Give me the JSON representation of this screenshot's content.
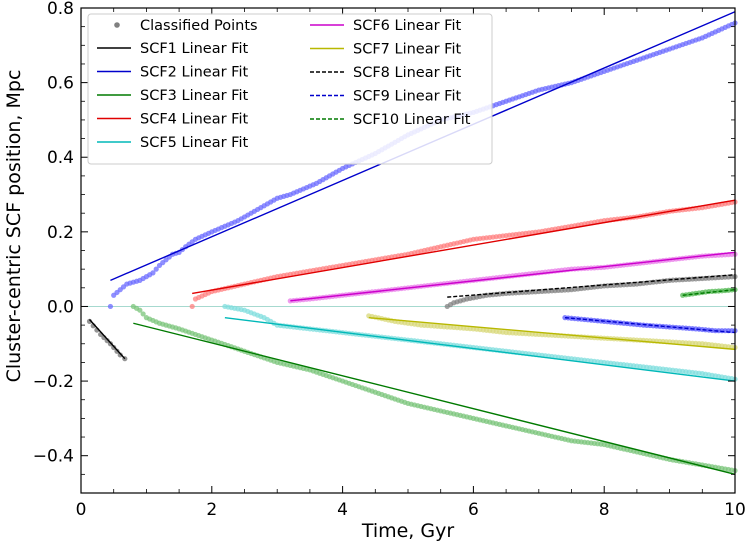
{
  "chart_data": {
    "type": "scatter",
    "title": "",
    "xlabel": "Time, Gyr",
    "ylabel": "Cluster-centric SCF position, Mpc",
    "xlim": [
      0,
      10
    ],
    "ylim": [
      -0.5,
      0.8
    ],
    "xticks": [
      0,
      2,
      4,
      6,
      8,
      10
    ],
    "xtick_labels": [
      "0",
      "2",
      "4",
      "6",
      "8",
      "10"
    ],
    "yticks": [
      -0.4,
      -0.2,
      0.0,
      0.2,
      0.4,
      0.6,
      0.8
    ],
    "ytick_labels": [
      "−0.4",
      "−0.2",
      "0.0",
      "0.2",
      "0.4",
      "0.6",
      "0.8"
    ],
    "zero_line": {
      "y": 0,
      "color": "#a6d9cf"
    },
    "legend": {
      "placement": "top-left",
      "points_label": "Classified Points",
      "points_color": "#808080",
      "entries": [
        {
          "label": "SCF1 Linear Fit",
          "color": "#000000",
          "dashed": false
        },
        {
          "label": "SCF2 Linear Fit",
          "color": "#0000cc",
          "dashed": false
        },
        {
          "label": "SCF3 Linear Fit",
          "color": "#007a00",
          "dashed": false
        },
        {
          "label": "SCF4 Linear Fit",
          "color": "#e00000",
          "dashed": false
        },
        {
          "label": "SCF5 Linear Fit",
          "color": "#00b8b8",
          "dashed": false
        },
        {
          "label": "SCF6 Linear Fit",
          "color": "#cc00cc",
          "dashed": false
        },
        {
          "label": "SCF7 Linear Fit",
          "color": "#b8b800",
          "dashed": false
        },
        {
          "label": "SCF8 Linear Fit",
          "color": "#000000",
          "dashed": true
        },
        {
          "label": "SCF9 Linear Fit",
          "color": "#0000cc",
          "dashed": true
        },
        {
          "label": "SCF10 Linear Fit",
          "color": "#007a00",
          "dashed": true
        }
      ]
    },
    "series": [
      {
        "name": "SCF1",
        "point_color": "#707070",
        "points": [
          [
            0.13,
            -0.04
          ],
          [
            0.3,
            -0.075
          ],
          [
            0.45,
            -0.1
          ],
          [
            0.6,
            -0.13
          ],
          [
            0.67,
            -0.14
          ]
        ],
        "fit": [
          [
            0.13,
            -0.035
          ],
          [
            0.67,
            -0.14
          ]
        ]
      },
      {
        "name": "SCF2",
        "point_color": "#6a6aff",
        "points": [
          [
            0.45,
            0.0
          ],
          [
            0.5,
            0.03
          ],
          [
            0.7,
            0.06
          ],
          [
            0.9,
            0.07
          ],
          [
            1.1,
            0.09
          ],
          [
            1.2,
            0.11
          ],
          [
            1.4,
            0.14
          ],
          [
            1.5,
            0.145
          ],
          [
            1.6,
            0.16
          ],
          [
            1.75,
            0.18
          ],
          [
            2.0,
            0.2
          ],
          [
            2.4,
            0.23
          ],
          [
            2.7,
            0.26
          ],
          [
            2.9,
            0.28
          ],
          [
            3.0,
            0.29
          ],
          [
            3.2,
            0.3
          ],
          [
            3.6,
            0.33
          ],
          [
            4.0,
            0.37
          ],
          [
            4.5,
            0.41
          ],
          [
            5.0,
            0.46
          ],
          [
            5.5,
            0.5
          ],
          [
            6.0,
            0.52
          ],
          [
            6.5,
            0.55
          ],
          [
            7.0,
            0.58
          ],
          [
            7.5,
            0.6
          ],
          [
            8.0,
            0.63
          ],
          [
            8.5,
            0.66
          ],
          [
            9.0,
            0.69
          ],
          [
            9.5,
            0.72
          ],
          [
            10.0,
            0.76
          ]
        ],
        "fit": [
          [
            0.45,
            0.07
          ],
          [
            10.0,
            0.79
          ]
        ]
      },
      {
        "name": "SCF3",
        "point_color": "#7ac47a",
        "points": [
          [
            0.8,
            0.0
          ],
          [
            0.9,
            -0.01
          ],
          [
            1.0,
            -0.03
          ],
          [
            1.2,
            -0.045
          ],
          [
            1.5,
            -0.06
          ],
          [
            2.0,
            -0.09
          ],
          [
            2.5,
            -0.12
          ],
          [
            3.0,
            -0.15
          ],
          [
            3.5,
            -0.17
          ],
          [
            4.0,
            -0.2
          ],
          [
            4.5,
            -0.23
          ],
          [
            5.0,
            -0.26
          ],
          [
            5.5,
            -0.28
          ],
          [
            6.0,
            -0.3
          ],
          [
            6.5,
            -0.32
          ],
          [
            7.0,
            -0.34
          ],
          [
            7.5,
            -0.36
          ],
          [
            8.0,
            -0.37
          ],
          [
            8.5,
            -0.39
          ],
          [
            9.0,
            -0.41
          ],
          [
            9.5,
            -0.425
          ],
          [
            10.0,
            -0.44
          ]
        ],
        "fit": [
          [
            0.8,
            -0.045
          ],
          [
            10.0,
            -0.45
          ]
        ]
      },
      {
        "name": "SCF4",
        "point_color": "#ff7f7f",
        "points": [
          [
            1.7,
            0.0
          ],
          [
            1.75,
            0.02
          ],
          [
            2.0,
            0.04
          ],
          [
            2.5,
            0.06
          ],
          [
            3.0,
            0.08
          ],
          [
            3.5,
            0.095
          ],
          [
            4.0,
            0.11
          ],
          [
            4.5,
            0.125
          ],
          [
            5.0,
            0.14
          ],
          [
            5.5,
            0.16
          ],
          [
            6.0,
            0.18
          ],
          [
            6.5,
            0.19
          ],
          [
            7.0,
            0.2
          ],
          [
            7.5,
            0.215
          ],
          [
            8.0,
            0.23
          ],
          [
            8.5,
            0.24
          ],
          [
            9.0,
            0.255
          ],
          [
            9.5,
            0.265
          ],
          [
            10.0,
            0.28
          ]
        ],
        "fit": [
          [
            1.7,
            0.035
          ],
          [
            10.0,
            0.285
          ]
        ]
      },
      {
        "name": "SCF5",
        "point_color": "#7fdede",
        "points": [
          [
            2.2,
            0.0
          ],
          [
            2.5,
            -0.01
          ],
          [
            2.8,
            -0.03
          ],
          [
            3.0,
            -0.05
          ],
          [
            3.5,
            -0.06
          ],
          [
            4.0,
            -0.07
          ],
          [
            4.5,
            -0.08
          ],
          [
            5.0,
            -0.09
          ],
          [
            5.5,
            -0.1
          ],
          [
            6.0,
            -0.11
          ],
          [
            6.5,
            -0.12
          ],
          [
            7.0,
            -0.13
          ],
          [
            7.5,
            -0.14
          ],
          [
            8.0,
            -0.15
          ],
          [
            8.5,
            -0.16
          ],
          [
            9.0,
            -0.17
          ],
          [
            9.5,
            -0.18
          ],
          [
            10.0,
            -0.195
          ]
        ],
        "fit": [
          [
            2.2,
            -0.03
          ],
          [
            10.0,
            -0.2
          ]
        ]
      },
      {
        "name": "SCF6",
        "point_color": "#e87ae8",
        "points": [
          [
            3.2,
            0.015
          ],
          [
            3.5,
            0.02
          ],
          [
            4.0,
            0.03
          ],
          [
            4.5,
            0.04
          ],
          [
            5.0,
            0.05
          ],
          [
            5.5,
            0.06
          ],
          [
            6.0,
            0.07
          ],
          [
            6.5,
            0.08
          ],
          [
            7.0,
            0.09
          ],
          [
            7.5,
            0.1
          ],
          [
            8.0,
            0.105
          ],
          [
            8.5,
            0.115
          ],
          [
            9.0,
            0.125
          ],
          [
            9.5,
            0.135
          ],
          [
            10.0,
            0.14
          ]
        ],
        "fit": [
          [
            3.2,
            0.015
          ],
          [
            10.0,
            0.145
          ]
        ]
      },
      {
        "name": "SCF7",
        "point_color": "#d8d87a",
        "points": [
          [
            4.4,
            -0.025
          ],
          [
            4.8,
            -0.04
          ],
          [
            5.2,
            -0.05
          ],
          [
            5.6,
            -0.055
          ],
          [
            6.0,
            -0.06
          ],
          [
            6.5,
            -0.07
          ],
          [
            7.0,
            -0.075
          ],
          [
            7.5,
            -0.08
          ],
          [
            8.0,
            -0.085
          ],
          [
            8.5,
            -0.09
          ],
          [
            9.0,
            -0.095
          ],
          [
            9.5,
            -0.1
          ],
          [
            10.0,
            -0.11
          ]
        ],
        "fit": [
          [
            4.4,
            -0.03
          ],
          [
            10.0,
            -0.115
          ]
        ]
      },
      {
        "name": "SCF8",
        "point_color": "#808080",
        "points": [
          [
            5.6,
            0.0
          ],
          [
            5.7,
            0.01
          ],
          [
            5.9,
            0.02
          ],
          [
            6.2,
            0.03
          ],
          [
            6.5,
            0.035
          ],
          [
            7.0,
            0.04
          ],
          [
            7.5,
            0.045
          ],
          [
            8.0,
            0.055
          ],
          [
            8.5,
            0.06
          ],
          [
            9.0,
            0.07
          ],
          [
            9.5,
            0.075
          ],
          [
            10.0,
            0.08
          ]
        ],
        "fit": [
          [
            5.6,
            0.025
          ],
          [
            10.0,
            0.085
          ]
        ]
      },
      {
        "name": "SCF9",
        "point_color": "#5a5aff",
        "points": [
          [
            7.4,
            -0.03
          ],
          [
            7.7,
            -0.035
          ],
          [
            8.0,
            -0.04
          ],
          [
            8.3,
            -0.045
          ],
          [
            8.6,
            -0.05
          ],
          [
            9.0,
            -0.055
          ],
          [
            9.4,
            -0.06
          ],
          [
            9.7,
            -0.065
          ],
          [
            10.0,
            -0.065
          ]
        ],
        "fit": [
          [
            7.4,
            -0.03
          ],
          [
            10.0,
            -0.07
          ]
        ]
      },
      {
        "name": "SCF10",
        "point_color": "#52b852",
        "points": [
          [
            9.2,
            0.03
          ],
          [
            9.4,
            0.035
          ],
          [
            9.6,
            0.04
          ],
          [
            9.8,
            0.042
          ],
          [
            10.0,
            0.045
          ]
        ],
        "fit": [
          [
            9.2,
            0.03
          ],
          [
            10.0,
            0.045
          ]
        ]
      }
    ]
  }
}
